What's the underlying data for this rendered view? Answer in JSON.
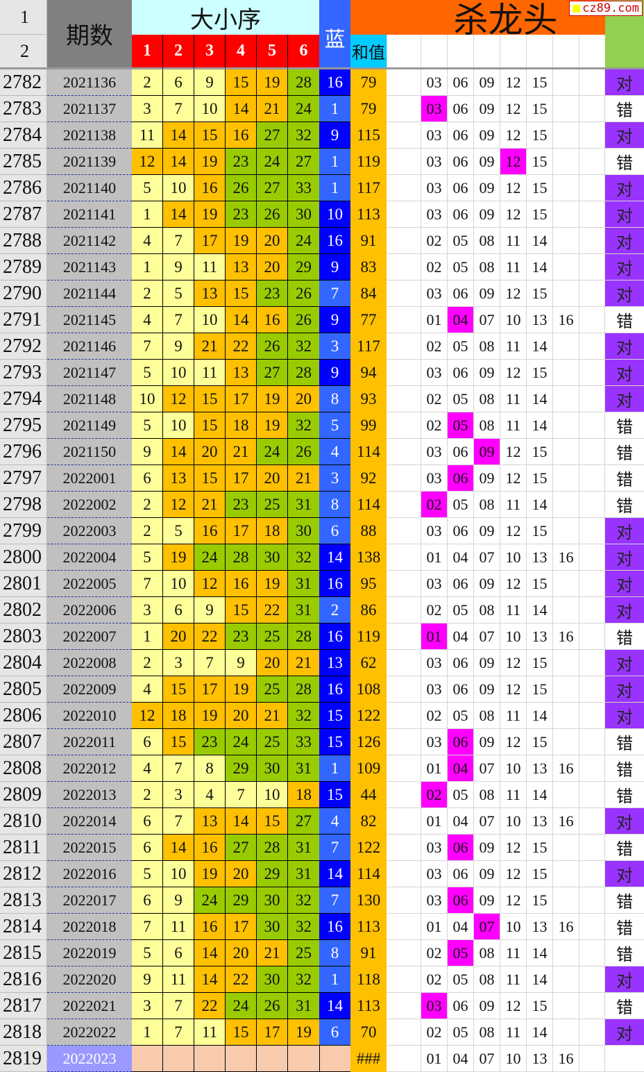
{
  "header": {
    "row1": "1",
    "row2": "2",
    "period": "期数",
    "order_title": "大小序",
    "cols": [
      "1",
      "2",
      "3",
      "4",
      "5",
      "6"
    ],
    "blue": "蓝",
    "sum": "和值",
    "kill_title": "杀龙头"
  },
  "watermark": "cz89.com",
  "colors": {
    "small": "#ffff99",
    "mid": "#ffc000",
    "large": "#99cc00",
    "blue_low": "#3366ff",
    "blue_high": "#0000ff",
    "highlight": "#ff00ff",
    "correct": "#9933ff",
    "header_red": "#ff0000",
    "kill_header": "#ff6600",
    "pending": "#f8cbad",
    "pending_period": "#9999ff"
  },
  "kill_sets": {
    "A": [
      "03",
      "06",
      "09",
      "12",
      "15"
    ],
    "B": [
      "02",
      "05",
      "08",
      "11",
      "14"
    ],
    "C": [
      "01",
      "04",
      "07",
      "10",
      "13",
      "16"
    ]
  },
  "rows": [
    {
      "n": "2782",
      "p": "2021136",
      "nums": [
        2,
        6,
        9,
        15,
        19,
        28
      ],
      "b": 16,
      "s": "79",
      "k": "A",
      "h": -1,
      "r": "对"
    },
    {
      "n": "2783",
      "p": "2021137",
      "nums": [
        3,
        7,
        10,
        14,
        21,
        24
      ],
      "b": 1,
      "s": "79",
      "k": "A",
      "h": 0,
      "r": "错"
    },
    {
      "n": "2784",
      "p": "2021138",
      "nums": [
        11,
        14,
        15,
        16,
        27,
        32
      ],
      "b": 9,
      "s": "115",
      "k": "A",
      "h": -1,
      "r": "对"
    },
    {
      "n": "2785",
      "p": "2021139",
      "nums": [
        12,
        14,
        19,
        23,
        24,
        27
      ],
      "b": 1,
      "s": "119",
      "k": "A",
      "h": 3,
      "r": "错"
    },
    {
      "n": "2786",
      "p": "2021140",
      "nums": [
        5,
        10,
        16,
        26,
        27,
        33
      ],
      "b": 1,
      "s": "117",
      "k": "A",
      "h": -1,
      "r": "对"
    },
    {
      "n": "2787",
      "p": "2021141",
      "nums": [
        1,
        14,
        19,
        23,
        26,
        30
      ],
      "b": 10,
      "s": "113",
      "k": "A",
      "h": -1,
      "r": "对"
    },
    {
      "n": "2788",
      "p": "2021142",
      "nums": [
        4,
        7,
        17,
        19,
        20,
        24
      ],
      "b": 16,
      "s": "91",
      "k": "B",
      "h": -1,
      "r": "对"
    },
    {
      "n": "2789",
      "p": "2021143",
      "nums": [
        1,
        9,
        11,
        13,
        20,
        29
      ],
      "b": 9,
      "s": "83",
      "k": "B",
      "h": -1,
      "r": "对"
    },
    {
      "n": "2790",
      "p": "2021144",
      "nums": [
        2,
        5,
        13,
        15,
        23,
        26
      ],
      "b": 7,
      "s": "84",
      "k": "A",
      "h": -1,
      "r": "对"
    },
    {
      "n": "2791",
      "p": "2021145",
      "nums": [
        4,
        7,
        10,
        14,
        16,
        26
      ],
      "b": 9,
      "s": "77",
      "k": "C",
      "h": 1,
      "r": "错"
    },
    {
      "n": "2792",
      "p": "2021146",
      "nums": [
        7,
        9,
        21,
        22,
        26,
        32
      ],
      "b": 3,
      "s": "117",
      "k": "B",
      "h": -1,
      "r": "对"
    },
    {
      "n": "2793",
      "p": "2021147",
      "nums": [
        5,
        10,
        11,
        13,
        27,
        28
      ],
      "b": 9,
      "s": "94",
      "k": "A",
      "h": -1,
      "r": "对"
    },
    {
      "n": "2794",
      "p": "2021148",
      "nums": [
        10,
        12,
        15,
        17,
        19,
        20
      ],
      "b": 8,
      "s": "93",
      "k": "B",
      "h": -1,
      "r": "对"
    },
    {
      "n": "2795",
      "p": "2021149",
      "nums": [
        5,
        10,
        15,
        18,
        19,
        32
      ],
      "b": 5,
      "s": "99",
      "k": "B",
      "h": 1,
      "r": "错"
    },
    {
      "n": "2796",
      "p": "2021150",
      "nums": [
        9,
        14,
        20,
        21,
        24,
        26
      ],
      "b": 4,
      "s": "114",
      "k": "A",
      "h": 2,
      "r": "错"
    },
    {
      "n": "2797",
      "p": "2022001",
      "nums": [
        6,
        13,
        15,
        17,
        20,
        21
      ],
      "b": 3,
      "s": "92",
      "k": "A",
      "h": 1,
      "r": "错"
    },
    {
      "n": "2798",
      "p": "2022002",
      "nums": [
        2,
        12,
        21,
        23,
        25,
        31
      ],
      "b": 8,
      "s": "114",
      "k": "B",
      "h": 0,
      "r": "错"
    },
    {
      "n": "2799",
      "p": "2022003",
      "nums": [
        2,
        5,
        16,
        17,
        18,
        30
      ],
      "b": 6,
      "s": "88",
      "k": "A",
      "h": -1,
      "r": "对"
    },
    {
      "n": "2800",
      "p": "2022004",
      "nums": [
        5,
        19,
        24,
        28,
        30,
        32
      ],
      "b": 14,
      "s": "138",
      "k": "C",
      "h": -1,
      "r": "对"
    },
    {
      "n": "2801",
      "p": "2022005",
      "nums": [
        7,
        10,
        12,
        16,
        19,
        31
      ],
      "b": 16,
      "s": "95",
      "k": "A",
      "h": -1,
      "r": "对"
    },
    {
      "n": "2802",
      "p": "2022006",
      "nums": [
        3,
        6,
        9,
        15,
        22,
        31
      ],
      "b": 2,
      "s": "86",
      "k": "B",
      "h": -1,
      "r": "对"
    },
    {
      "n": "2803",
      "p": "2022007",
      "nums": [
        1,
        20,
        22,
        23,
        25,
        28
      ],
      "b": 16,
      "s": "119",
      "k": "C",
      "h": 0,
      "r": "错"
    },
    {
      "n": "2804",
      "p": "2022008",
      "nums": [
        2,
        3,
        7,
        9,
        20,
        21
      ],
      "b": 13,
      "s": "62",
      "k": "A",
      "h": -1,
      "r": "对"
    },
    {
      "n": "2805",
      "p": "2022009",
      "nums": [
        4,
        15,
        17,
        19,
        25,
        28
      ],
      "b": 16,
      "s": "108",
      "k": "A",
      "h": -1,
      "r": "对"
    },
    {
      "n": "2806",
      "p": "2022010",
      "nums": [
        12,
        18,
        19,
        20,
        21,
        32
      ],
      "b": 15,
      "s": "122",
      "k": "B",
      "h": -1,
      "r": "对"
    },
    {
      "n": "2807",
      "p": "2022011",
      "nums": [
        6,
        15,
        23,
        24,
        25,
        33
      ],
      "b": 15,
      "s": "126",
      "k": "A",
      "h": 1,
      "r": "错"
    },
    {
      "n": "2808",
      "p": "2022012",
      "nums": [
        4,
        7,
        8,
        29,
        30,
        31
      ],
      "b": 1,
      "s": "109",
      "k": "C",
      "h": 1,
      "r": "错"
    },
    {
      "n": "2809",
      "p": "2022013",
      "nums": [
        2,
        3,
        4,
        7,
        10,
        18
      ],
      "b": 15,
      "s": "44",
      "k": "B",
      "h": 0,
      "r": "错"
    },
    {
      "n": "2810",
      "p": "2022014",
      "nums": [
        6,
        7,
        13,
        14,
        15,
        27
      ],
      "b": 4,
      "s": "82",
      "k": "C",
      "h": -1,
      "r": "对"
    },
    {
      "n": "2811",
      "p": "2022015",
      "nums": [
        6,
        14,
        16,
        27,
        28,
        31
      ],
      "b": 7,
      "s": "122",
      "k": "A",
      "h": 1,
      "r": "错"
    },
    {
      "n": "2812",
      "p": "2022016",
      "nums": [
        5,
        10,
        19,
        20,
        29,
        31
      ],
      "b": 14,
      "s": "114",
      "k": "A",
      "h": -1,
      "r": "对"
    },
    {
      "n": "2813",
      "p": "2022017",
      "nums": [
        6,
        9,
        24,
        29,
        30,
        32
      ],
      "b": 7,
      "s": "130",
      "k": "A",
      "h": 1,
      "r": "错"
    },
    {
      "n": "2814",
      "p": "2022018",
      "nums": [
        7,
        11,
        16,
        17,
        30,
        32
      ],
      "b": 16,
      "s": "113",
      "k": "C",
      "h": 2,
      "r": "错"
    },
    {
      "n": "2815",
      "p": "2022019",
      "nums": [
        5,
        6,
        14,
        20,
        21,
        25
      ],
      "b": 8,
      "s": "91",
      "k": "B",
      "h": 1,
      "r": "错"
    },
    {
      "n": "2816",
      "p": "2022020",
      "nums": [
        9,
        11,
        14,
        22,
        30,
        32
      ],
      "b": 1,
      "s": "118",
      "k": "B",
      "h": -1,
      "r": "对"
    },
    {
      "n": "2817",
      "p": "2022021",
      "nums": [
        3,
        7,
        22,
        24,
        26,
        31
      ],
      "b": 14,
      "s": "113",
      "k": "A",
      "h": 0,
      "r": "错"
    },
    {
      "n": "2818",
      "p": "2022022",
      "nums": [
        1,
        7,
        11,
        15,
        17,
        19
      ],
      "b": 6,
      "s": "70",
      "k": "B",
      "h": -1,
      "r": "对"
    },
    {
      "n": "2819",
      "p": "2022023",
      "nums": [],
      "b": null,
      "s": "###",
      "k": "C",
      "h": -1,
      "r": ""
    }
  ]
}
